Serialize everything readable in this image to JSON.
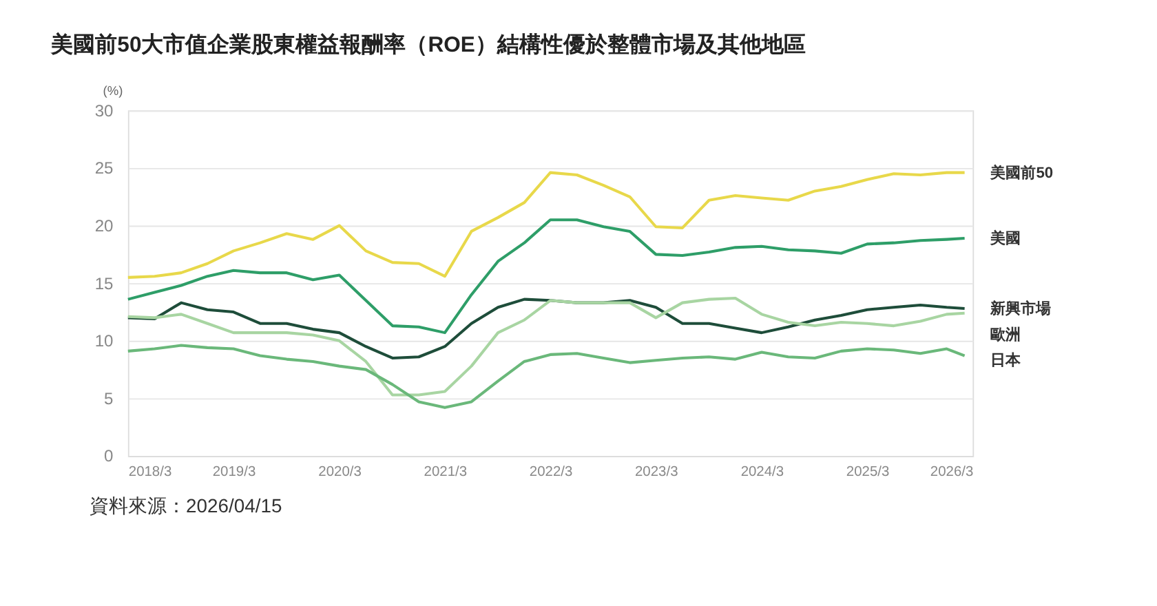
{
  "chart_data": {
    "type": "line",
    "title": "美國前50大市值企業股東權益報酬率（ROE）結構性優於整體市場及其他地區",
    "ylabel": "(%)",
    "x": [
      "2018-03",
      "2018-06",
      "2018-09",
      "2018-12",
      "2019-03",
      "2019-06",
      "2019-09",
      "2019-12",
      "2020-03",
      "2020-06",
      "2020-09",
      "2020-12",
      "2021-03",
      "2021-06",
      "2021-09",
      "2021-12",
      "2022-03",
      "2022-06",
      "2022-09",
      "2022-12",
      "2023-03",
      "2023-06",
      "2023-09",
      "2023-12",
      "2024-03",
      "2024-06",
      "2024-09",
      "2024-12",
      "2025-03",
      "2025-06",
      "2025-09",
      "2025-12",
      "2026-02"
    ],
    "series": [
      {
        "name": "美國前50",
        "color": "#e8d84a",
        "values": [
          15.5,
          15.6,
          15.9,
          16.7,
          17.8,
          18.5,
          19.3,
          18.8,
          20,
          17.8,
          16.8,
          16.7,
          15.6,
          19.5,
          20.7,
          22,
          24.6,
          24.4,
          23.5,
          22.5,
          19.9,
          19.8,
          22.2,
          22.6,
          22.4,
          22.2,
          23,
          23.4,
          24,
          24.5,
          24.4,
          24.6,
          24.6
        ]
      },
      {
        "name": "美國",
        "color": "#2e9e68",
        "values": [
          13.6,
          14.2,
          14.8,
          15.6,
          16.1,
          15.9,
          15.9,
          15.3,
          15.7,
          13.5,
          11.3,
          11.2,
          10.7,
          14,
          16.9,
          18.5,
          20.5,
          20.5,
          19.9,
          19.5,
          17.5,
          17.4,
          17.7,
          18.1,
          18.2,
          17.9,
          17.8,
          17.6,
          18.4,
          18.5,
          18.7,
          18.8,
          18.9
        ]
      },
      {
        "name": "新興市場",
        "color": "#1e4d3a",
        "values": [
          12,
          11.9,
          13.3,
          12.7,
          12.5,
          11.5,
          11.5,
          11,
          10.7,
          9.5,
          8.5,
          8.6,
          9.5,
          11.5,
          12.9,
          13.6,
          13.5,
          13.3,
          13.3,
          13.5,
          12.9,
          11.5,
          11.5,
          11.1,
          10.7,
          11.2,
          11.8,
          12.2,
          12.7,
          12.9,
          13.1,
          12.9,
          12.8
        ]
      },
      {
        "name": "歐洲",
        "color": "#a8d5a2",
        "values": [
          12.1,
          12,
          12.3,
          11.5,
          10.7,
          10.7,
          10.7,
          10.5,
          10,
          8.2,
          5.3,
          5.3,
          5.6,
          7.8,
          10.7,
          11.8,
          13.5,
          13.3,
          13.3,
          13.3,
          12,
          13.3,
          13.6,
          13.7,
          12.3,
          11.6,
          11.3,
          11.6,
          11.5,
          11.3,
          11.7,
          12.3,
          12.4
        ]
      },
      {
        "name": "日本",
        "color": "#6ab87a",
        "values": [
          9.1,
          9.3,
          9.6,
          9.4,
          9.3,
          8.7,
          8.4,
          8.2,
          7.8,
          7.5,
          6.2,
          4.7,
          4.2,
          4.7,
          6.5,
          8.2,
          8.8,
          8.9,
          8.5,
          8.1,
          8.3,
          8.5,
          8.6,
          8.4,
          9,
          8.6,
          8.5,
          9.1,
          9.3,
          9.2,
          8.9,
          9.3,
          8.7
        ]
      }
    ],
    "xlim": [
      "2018-03",
      "2026-03"
    ],
    "xticks": [
      {
        "value": "2018-03",
        "label": "2018/3"
      },
      {
        "value": "2019-03",
        "label": "2019/3"
      },
      {
        "value": "2020-03",
        "label": "2020/3"
      },
      {
        "value": "2021-03",
        "label": "2021/3"
      },
      {
        "value": "2022-03",
        "label": "2022/3"
      },
      {
        "value": "2023-03",
        "label": "2023/3"
      },
      {
        "value": "2024-03",
        "label": "2024/3"
      },
      {
        "value": "2025-03",
        "label": "2025/3"
      },
      {
        "value": "2026-03",
        "label": "2026/3"
      }
    ],
    "ylim": [
      0,
      30
    ],
    "yticks": [
      0,
      5,
      10,
      15,
      20,
      25,
      30
    ],
    "grid": "y",
    "legend": "right",
    "line_style": "solid",
    "marker": "none",
    "annotations": [
      "資料來源：2026/04/15"
    ]
  }
}
